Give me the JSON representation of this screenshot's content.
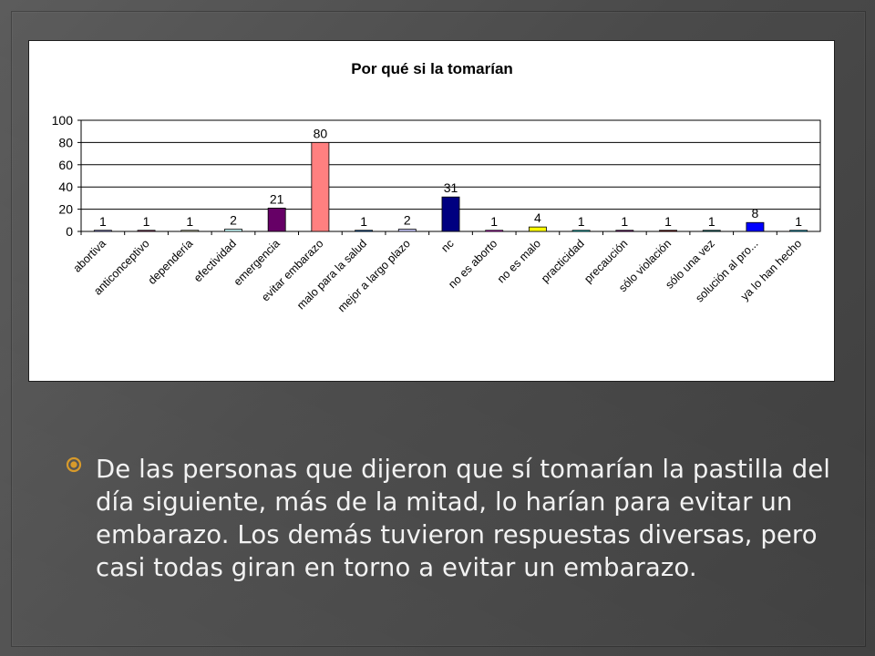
{
  "slide": {
    "bullet_text": "De las personas que dijeron que sí tomarían la pastilla del día siguiente, más de la mitad, lo harían para evitar un embarazo. Los demás tuvieron respuestas diversas, pero casi todas giran en torno a evitar un embarazo."
  },
  "chart_data": {
    "type": "bar",
    "title": "Por qué si la tomarían",
    "xlabel": "",
    "ylabel": "",
    "ylim": [
      0,
      100
    ],
    "yticks": [
      0,
      20,
      40,
      60,
      80,
      100
    ],
    "grid": true,
    "categories": [
      "abortiva",
      "anticonceptivo",
      "dependería",
      "efectividad",
      "emergencia",
      "evitar embarazo",
      "malo para la salud",
      "mejor a largo plazo",
      "nc",
      "no es aborto",
      "no es malo",
      "practicidad",
      "precaución",
      "sólo violación",
      "sólo una vez",
      "solución al pro...",
      "ya lo han hecho"
    ],
    "values": [
      1,
      1,
      1,
      2,
      21,
      80,
      1,
      2,
      31,
      1,
      4,
      1,
      1,
      1,
      1,
      8,
      1
    ],
    "colors": [
      "#9999ff",
      "#993366",
      "#ffffcc",
      "#ccffff",
      "#660066",
      "#ff8080",
      "#0066cc",
      "#ccccff",
      "#000080",
      "#ff00ff",
      "#ffff00",
      "#00ffff",
      "#800080",
      "#800000",
      "#008080",
      "#0000ff",
      "#00ccff"
    ]
  }
}
